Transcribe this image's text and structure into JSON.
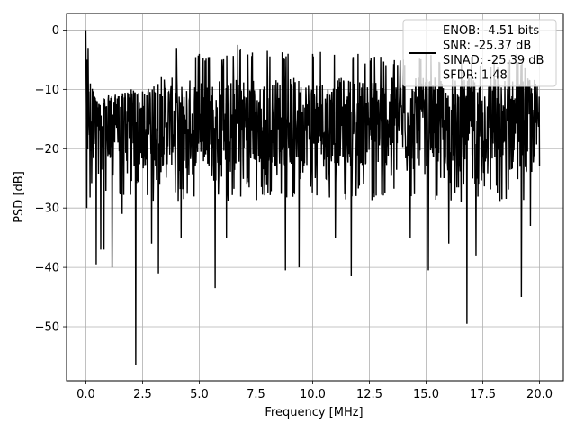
{
  "chart_data": {
    "type": "line",
    "title": "",
    "xlabel": "Frequency [MHz]",
    "ylabel": "PSD [dB]",
    "xlim": [
      -0.85,
      21.05
    ],
    "ylim": [
      -59.1,
      2.8
    ],
    "xticks": [
      0.0,
      2.5,
      5.0,
      7.5,
      10.0,
      12.5,
      15.0,
      17.5,
      20.0
    ],
    "xtick_labels": [
      "0.0",
      "2.5",
      "5.0",
      "7.5",
      "10.0",
      "12.5",
      "15.0",
      "17.5",
      "20.0"
    ],
    "yticks": [
      0,
      -10,
      -20,
      -30,
      -40,
      -50
    ],
    "ytick_labels": [
      "0",
      "−10",
      "−20",
      "−30",
      "−40",
      "−50"
    ],
    "grid": true,
    "legend_position": "top-right",
    "series": [
      {
        "name": "ENOB: -4.51 bits\nSNR: -25.37 dB\nSINAD: -25.39 dB\nSFDR: 1.48",
        "color": "#000000",
        "x_range": [
          0.0,
          20.0
        ],
        "upper_envelope": [
          [
            0.0,
            0.0
          ],
          [
            0.05,
            -5
          ],
          [
            0.1,
            -3
          ],
          [
            0.2,
            -9
          ],
          [
            0.5,
            -12
          ],
          [
            1.0,
            -11
          ],
          [
            2.0,
            -10
          ],
          [
            3.0,
            -9.5
          ],
          [
            4.0,
            -3
          ],
          [
            5.0,
            -4
          ],
          [
            6.0,
            -5
          ],
          [
            6.7,
            -2.5
          ],
          [
            8.0,
            -3.5
          ],
          [
            10.0,
            -4
          ],
          [
            11.0,
            -3
          ],
          [
            12.0,
            -4
          ],
          [
            13.0,
            -4.5
          ],
          [
            14.0,
            -5
          ],
          [
            15.0,
            -4
          ],
          [
            16.0,
            -4.5
          ],
          [
            17.0,
            -4.5
          ],
          [
            18.0,
            -5
          ],
          [
            19.0,
            -4
          ],
          [
            20.0,
            -9
          ]
        ],
        "typical_band": [
          -23,
          -8
        ],
        "deep_dips": [
          [
            0.04,
            -30
          ],
          [
            0.45,
            -39.5
          ],
          [
            0.65,
            -37
          ],
          [
            0.8,
            -37
          ],
          [
            1.15,
            -40
          ],
          [
            1.6,
            -31
          ],
          [
            2.2,
            -56.5
          ],
          [
            2.9,
            -36
          ],
          [
            3.2,
            -41
          ],
          [
            4.2,
            -35
          ],
          [
            5.7,
            -43.5
          ],
          [
            6.2,
            -35
          ],
          [
            8.8,
            -40.5
          ],
          [
            9.4,
            -40
          ],
          [
            11.0,
            -35
          ],
          [
            11.7,
            -41.5
          ],
          [
            14.3,
            -35
          ],
          [
            15.1,
            -40.5
          ],
          [
            16.0,
            -36
          ],
          [
            16.8,
            -49.5
          ],
          [
            17.2,
            -38
          ],
          [
            19.2,
            -45
          ],
          [
            19.6,
            -33
          ]
        ],
        "end_value": [
          20.0,
          -23
        ]
      }
    ]
  }
}
